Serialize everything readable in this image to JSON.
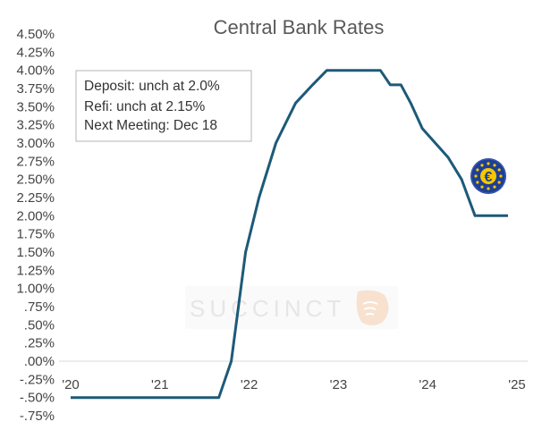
{
  "chart_data": {
    "type": "line",
    "title": "Central Bank Rates",
    "xlabel": "",
    "ylabel": "",
    "x_ticks": [
      "'20",
      "'21",
      "'22",
      "'23",
      "'24",
      "'25"
    ],
    "x_tick_values": [
      2020,
      2021,
      2022,
      2023,
      2024,
      2025
    ],
    "y_ticks": [
      "4.50%",
      "4.25%",
      "4.00%",
      "3.75%",
      "3.50%",
      "3.25%",
      "3.00%",
      "2.75%",
      "2.50%",
      "2.25%",
      "2.00%",
      "1.75%",
      "1.50%",
      "1.25%",
      "1.00%",
      ".75%",
      ".50%",
      ".25%",
      ".00%",
      "-.25%",
      "-.50%",
      "-.75%"
    ],
    "ylim": [
      -0.75,
      4.5
    ],
    "grid": false,
    "series": [
      {
        "color": "#1d5a78",
        "x": [
          2020.0,
          2021.66,
          2021.8,
          2021.96,
          2022.11,
          2022.3,
          2022.38,
          2022.52,
          2022.71,
          2022.87,
          2023.0,
          2023.47,
          2023.58,
          2023.7,
          2023.81,
          2023.94,
          2024.23,
          2024.38,
          2024.53,
          2024.9
        ],
        "y": [
          -0.5,
          -0.5,
          0.0,
          1.5,
          2.25,
          3.0,
          3.2,
          3.55,
          3.8,
          4.0,
          4.0,
          4.0,
          3.8,
          3.8,
          3.55,
          3.2,
          2.8,
          2.5,
          2.0,
          2.0
        ]
      }
    ],
    "annotation": {
      "lines": [
        "Deposit: unch at 2.0%",
        "Refi: unch at 2.15%",
        "Next Meeting:  Dec 18"
      ],
      "placement": "top-left"
    },
    "watermark": "SUCCINCT",
    "logo_icon": "euro-coin-icon"
  }
}
